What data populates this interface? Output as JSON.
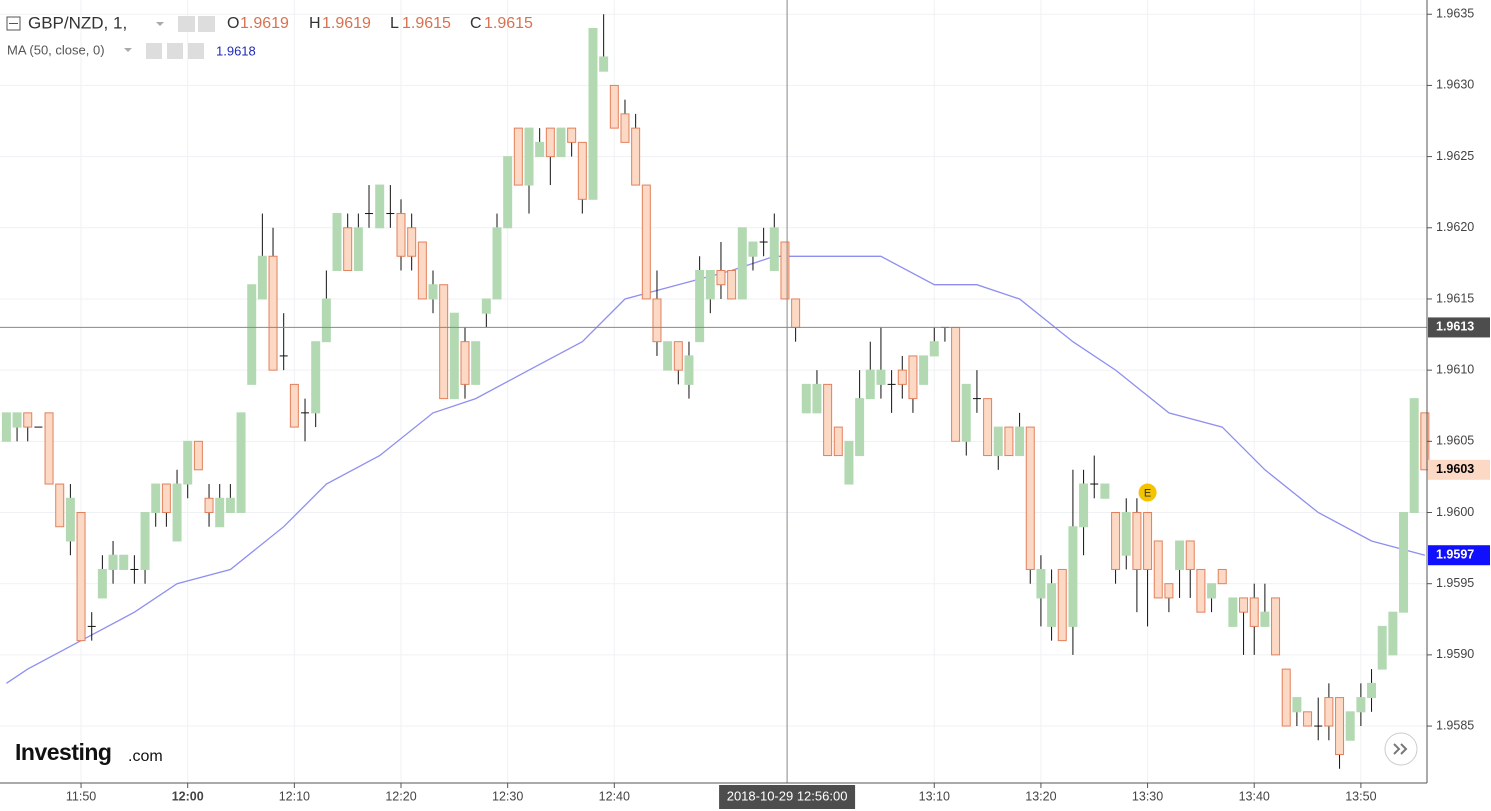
{
  "chart_data": {
    "type": "candlestick",
    "title": "GBP/NZD, 1,",
    "ohlc_header": {
      "o_label": "O",
      "o": "1.9619",
      "h_label": "H",
      "h": "1.9619",
      "l_label": "L",
      "l": "1.9615",
      "c_label": "C",
      "c": "1.9615"
    },
    "indicator": {
      "name": "MA (50, close, 0)",
      "value": "1.9618",
      "color": "#8f8ff0"
    },
    "logo": {
      "brand": "Investing",
      "suffix": ".com"
    },
    "xlim": [
      -0.6,
      133.2
    ],
    "ylim": [
      1.9581,
      1.9636
    ],
    "yticks": [
      1.9585,
      {
        "value": 1.959,
        "label": "1.9590"
      },
      1.9595,
      {
        "value": 1.96,
        "label": "1.9600"
      },
      1.9605,
      {
        "value": 1.961,
        "label": "1.9610"
      },
      1.9615,
      {
        "value": 1.962,
        "label": "1.9620"
      },
      1.9625,
      {
        "value": 1.963,
        "label": "1.9630"
      },
      1.9635
    ],
    "xticks": [
      {
        "value": 7,
        "label": "11:50"
      },
      {
        "value": 17,
        "label": "12:00",
        "bold": true
      },
      {
        "value": 27,
        "label": "12:10"
      },
      {
        "value": 37,
        "label": "12:20"
      },
      {
        "value": 47,
        "label": "12:30"
      },
      {
        "value": 57,
        "label": "12:40"
      },
      {
        "value": 87,
        "label": "13:10"
      },
      {
        "value": 97,
        "label": "13:20"
      },
      {
        "value": 107,
        "label": "13:30"
      },
      {
        "value": 117,
        "label": "13:40"
      },
      {
        "value": 127,
        "label": "13:50"
      }
    ],
    "grid": true,
    "up_color": "#b3d9b3",
    "down_color": "#fcd9c4",
    "down_border": "#e2805c",
    "open": [
      1.9605,
      1.9606,
      1.9607,
      1.9606,
      1.9607,
      1.9602,
      1.9598,
      1.96,
      1.9592,
      1.9594,
      1.9596,
      1.9596,
      1.9596,
      1.9596,
      1.96,
      1.9602,
      1.9598,
      1.9602,
      1.9605,
      1.9601,
      1.9599,
      1.96,
      1.96,
      1.9609,
      1.9615,
      1.9618,
      1.9611,
      1.9609,
      1.9607,
      1.9607,
      1.9612,
      1.9617,
      1.962,
      1.9617,
      1.9621,
      1.962,
      1.9621,
      1.9621,
      1.962,
      1.9619,
      1.9615,
      1.9616,
      1.9608,
      1.9612,
      1.9609,
      1.9614,
      1.9615,
      1.962,
      1.9627,
      1.9623,
      1.9625,
      1.9627,
      1.9625,
      1.9627,
      1.9626,
      1.9622,
      1.9631,
      1.963,
      1.9628,
      1.9627,
      1.9623,
      1.9615,
      1.961,
      1.9612,
      1.9609,
      1.9612,
      1.9615,
      1.9617,
      1.9617,
      1.9615,
      1.9618,
      1.9619,
      1.9617,
      1.9619,
      1.9615,
      1.9607,
      1.9607,
      1.9609,
      1.9606,
      1.9602,
      1.9604,
      1.9608,
      1.9609,
      1.9609,
      1.961,
      1.9611,
      1.9609,
      1.9611,
      1.9613,
      1.9613,
      1.9605,
      1.9608,
      1.9608,
      1.9604,
      1.9606,
      1.9604,
      1.9606,
      1.9594,
      1.9592,
      1.9596,
      1.9592,
      1.9599,
      1.9602,
      1.9601,
      1.96,
      1.9597,
      1.96,
      1.96,
      1.9598,
      1.9595,
      1.9596,
      1.9598,
      1.9596,
      1.9594,
      1.9596,
      1.9592,
      1.9594,
      1.9594,
      1.9592,
      1.9594,
      1.9589,
      1.9586,
      1.9586,
      1.9585,
      1.9587,
      1.9587,
      1.9584,
      1.9586,
      1.9587,
      1.9589,
      1.959,
      1.9593,
      1.96,
      1.9607
    ],
    "high": [
      1.9607,
      1.9607,
      1.9607,
      1.9606,
      1.9607,
      1.9602,
      1.9602,
      1.96,
      1.9593,
      1.9597,
      1.9598,
      1.9597,
      1.9597,
      1.96,
      1.9602,
      1.9602,
      1.9603,
      1.9605,
      1.9605,
      1.9602,
      1.9602,
      1.9602,
      1.9607,
      1.9616,
      1.9621,
      1.962,
      1.9614,
      1.9609,
      1.9608,
      1.9612,
      1.9617,
      1.9621,
      1.9621,
      1.9621,
      1.9623,
      1.9623,
      1.9623,
      1.9622,
      1.9621,
      1.9619,
      1.9617,
      1.9616,
      1.9614,
      1.9613,
      1.9612,
      1.9615,
      1.9621,
      1.9625,
      1.9627,
      1.9627,
      1.9627,
      1.9627,
      1.9627,
      1.9627,
      1.9626,
      1.9634,
      1.9635,
      1.963,
      1.9629,
      1.9628,
      1.9623,
      1.9617,
      1.9612,
      1.9612,
      1.9612,
      1.9618,
      1.9617,
      1.9619,
      1.9617,
      1.962,
      1.9619,
      1.962,
      1.9621,
      1.9619,
      1.9615,
      1.9609,
      1.961,
      1.9609,
      1.9606,
      1.9605,
      1.961,
      1.9612,
      1.9613,
      1.961,
      1.9611,
      1.9611,
      1.9611,
      1.9613,
      1.9613,
      1.9613,
      1.9609,
      1.961,
      1.9608,
      1.9606,
      1.9606,
      1.9607,
      1.9606,
      1.9597,
      1.9596,
      1.9596,
      1.9603,
      1.9603,
      1.9604,
      1.9602,
      1.96,
      1.9601,
      1.9601,
      1.96,
      1.9598,
      1.9595,
      1.9598,
      1.9598,
      1.9596,
      1.9595,
      1.9596,
      1.9594,
      1.9594,
      1.9595,
      1.9595,
      1.9594,
      1.9589,
      1.9587,
      1.9586,
      1.9587,
      1.9588,
      1.9587,
      1.9586,
      1.9588,
      1.9589,
      1.9592,
      1.9593,
      1.96,
      1.9608,
      1.9607
    ],
    "low": [
      1.9605,
      1.9605,
      1.9605,
      1.9606,
      1.9602,
      1.9599,
      1.9597,
      1.9591,
      1.9591,
      1.9594,
      1.9595,
      1.9596,
      1.9595,
      1.9595,
      1.9599,
      1.9599,
      1.9598,
      1.9601,
      1.9603,
      1.9599,
      1.9599,
      1.96,
      1.96,
      1.9609,
      1.9615,
      1.961,
      1.961,
      1.9606,
      1.9605,
      1.9606,
      1.9612,
      1.9617,
      1.9617,
      1.9617,
      1.962,
      1.962,
      1.962,
      1.9617,
      1.9617,
      1.9615,
      1.9614,
      1.9608,
      1.9608,
      1.9608,
      1.9609,
      1.9613,
      1.9615,
      1.962,
      1.9623,
      1.9621,
      1.9625,
      1.9623,
      1.9625,
      1.9625,
      1.9621,
      1.9622,
      1.9631,
      1.9627,
      1.9626,
      1.9623,
      1.9615,
      1.9611,
      1.961,
      1.9609,
      1.9608,
      1.9612,
      1.9614,
      1.9615,
      1.9615,
      1.9615,
      1.9617,
      1.9618,
      1.9617,
      1.9615,
      1.9612,
      1.9607,
      1.9607,
      1.9604,
      1.9604,
      1.9602,
      1.9604,
      1.9608,
      1.9608,
      1.9607,
      1.9608,
      1.9607,
      1.9609,
      1.9611,
      1.9612,
      1.9605,
      1.9604,
      1.9607,
      1.9604,
      1.9603,
      1.9604,
      1.9604,
      1.9595,
      1.9592,
      1.9591,
      1.9591,
      1.959,
      1.9597,
      1.9601,
      1.9601,
      1.9595,
      1.9596,
      1.9593,
      1.9592,
      1.9594,
      1.9593,
      1.9594,
      1.9594,
      1.9593,
      1.9593,
      1.9595,
      1.9592,
      1.959,
      1.959,
      1.9592,
      1.959,
      1.9585,
      1.9585,
      1.9585,
      1.9584,
      1.9584,
      1.9582,
      1.9584,
      1.9585,
      1.9586,
      1.9589,
      1.959,
      1.9593,
      1.96,
      1.9603
    ],
    "close": [
      1.9607,
      1.9607,
      1.9606,
      1.9606,
      1.9602,
      1.9599,
      1.9601,
      1.9591,
      1.9592,
      1.9596,
      1.9597,
      1.9597,
      1.9596,
      1.96,
      1.9602,
      1.96,
      1.9602,
      1.9605,
      1.9603,
      1.96,
      1.9601,
      1.9601,
      1.9607,
      1.9616,
      1.9618,
      1.961,
      1.9611,
      1.9606,
      1.9607,
      1.9612,
      1.9615,
      1.9621,
      1.9617,
      1.962,
      1.9621,
      1.9623,
      1.9621,
      1.9618,
      1.9618,
      1.9615,
      1.9616,
      1.9608,
      1.9614,
      1.9609,
      1.9612,
      1.9615,
      1.962,
      1.9625,
      1.9623,
      1.9627,
      1.9626,
      1.9625,
      1.9627,
      1.9626,
      1.9622,
      1.9634,
      1.9632,
      1.9627,
      1.9626,
      1.9623,
      1.9615,
      1.9612,
      1.9612,
      1.961,
      1.9611,
      1.9617,
      1.9617,
      1.9616,
      1.9615,
      1.962,
      1.9619,
      1.9619,
      1.962,
      1.9615,
      1.9613,
      1.9609,
      1.9609,
      1.9604,
      1.9604,
      1.9605,
      1.9608,
      1.961,
      1.961,
      1.9609,
      1.9609,
      1.9608,
      1.9611,
      1.9612,
      1.9613,
      1.9605,
      1.9609,
      1.9608,
      1.9604,
      1.9606,
      1.9604,
      1.9606,
      1.9596,
      1.9596,
      1.9595,
      1.9591,
      1.9599,
      1.9602,
      1.9602,
      1.9602,
      1.9596,
      1.96,
      1.9596,
      1.9596,
      1.9594,
      1.9594,
      1.9598,
      1.9596,
      1.9593,
      1.9595,
      1.9595,
      1.9594,
      1.9593,
      1.9592,
      1.9593,
      1.959,
      1.9585,
      1.9587,
      1.9585,
      1.9585,
      1.9585,
      1.9583,
      1.9586,
      1.9587,
      1.9588,
      1.9592,
      1.9593,
      1.96,
      1.9608,
      1.9603
    ],
    "ma": {
      "x": [
        0,
        2,
        7,
        12,
        16,
        21,
        26,
        30,
        35,
        40,
        44,
        49,
        54,
        58,
        63,
        68,
        72,
        77,
        82,
        87,
        91,
        95,
        100,
        104,
        109,
        114,
        118,
        123,
        128,
        133
      ],
      "values": [
        1.9588,
        1.9589,
        1.9591,
        1.9593,
        1.9595,
        1.9596,
        1.9599,
        1.9602,
        1.9604,
        1.9607,
        1.9608,
        1.961,
        1.9612,
        1.9615,
        1.9616,
        1.9617,
        1.9618,
        1.9618,
        1.9618,
        1.9616,
        1.9616,
        1.9615,
        1.9612,
        1.961,
        1.9607,
        1.9606,
        1.9603,
        1.96,
        1.9598,
        1.9597
      ]
    },
    "price_labels": [
      {
        "value": 1.9613,
        "color": "#4d4d4d",
        "text_color": "#ffffff"
      },
      {
        "value": 1.9603,
        "color": "#fcd9c4",
        "text_color": "#000000"
      },
      {
        "value": 1.9597,
        "color": "#1010ff",
        "text_color": "#ffffff"
      }
    ],
    "crosshair": {
      "x": 73.2,
      "label": "2018-10-29 12:56:00"
    },
    "events": [
      {
        "x": 107,
        "label": "E"
      }
    ]
  }
}
